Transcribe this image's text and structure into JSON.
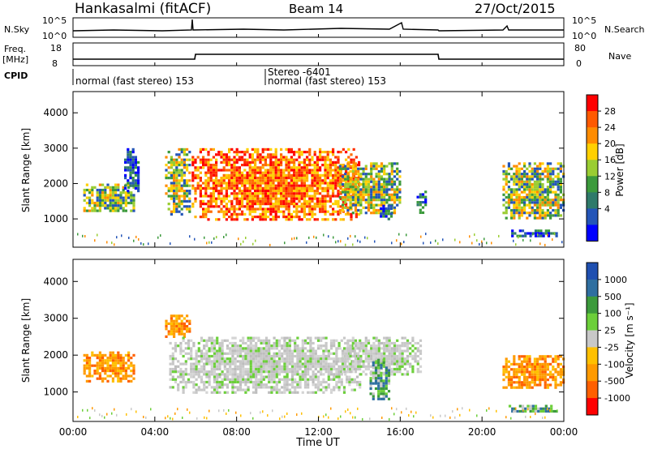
{
  "header": {
    "title": "Hankasalmi (fitACF)",
    "beam": "Beam 14",
    "date": "27/Oct/2015"
  },
  "top_panels": {
    "nsky_label": "N.Sky",
    "nsky_ticks": [
      "10^5",
      "10^0"
    ],
    "nsearch_label": "N.Search",
    "nsearch_ticks": [
      "10^5",
      "10^0"
    ],
    "freq_label": "Freq.",
    "freq_unit": "[MHz]",
    "freq_ticks": [
      "18",
      "8"
    ],
    "nave_label": "Nave",
    "nave_ticks": [
      "80",
      "0"
    ],
    "cpid_label": "CPID",
    "cpid_left": "normal (fast stereo) 153",
    "cpid_right_top": "Stereo -6401",
    "cpid_right_bottom": "normal (fast stereo) 153"
  },
  "chart_data": [
    {
      "type": "heatmap",
      "title": "",
      "ylabel": "Slant Range [km]",
      "xlabel": "",
      "xlim": [
        "00:00",
        "24:00"
      ],
      "ylim": [
        200,
        4600
      ],
      "yticks": [
        "1000",
        "2000",
        "3000",
        "4000"
      ],
      "colorbar": {
        "label": "Power [dB]",
        "ticks": [
          "28",
          "24",
          "20",
          "16",
          "12",
          "8",
          "4"
        ],
        "colors": [
          "#ff0000",
          "#ff5a00",
          "#ff8c00",
          "#ffd000",
          "#9acd32",
          "#3c9a3c",
          "#2f7a6a",
          "#2455b8",
          "#0000ff"
        ]
      },
      "regions": [
        {
          "t": [
            0.5,
            3.0
          ],
          "r": [
            1200,
            2000
          ],
          "level": "mid"
        },
        {
          "t": [
            2.5,
            3.2
          ],
          "r": [
            1800,
            3000
          ],
          "level": "low"
        },
        {
          "t": [
            4.5,
            5.7
          ],
          "r": [
            1100,
            3000
          ],
          "level": "mid"
        },
        {
          "t": [
            5.8,
            14.0
          ],
          "r": [
            1000,
            3000
          ],
          "level": "high"
        },
        {
          "t": [
            13.0,
            16.0
          ],
          "r": [
            1200,
            2600
          ],
          "level": "mid"
        },
        {
          "t": [
            15.0,
            15.6
          ],
          "r": [
            1000,
            1400
          ],
          "level": "low"
        },
        {
          "t": [
            16.8,
            17.2
          ],
          "r": [
            1200,
            1800
          ],
          "level": "low"
        },
        {
          "t": [
            21.0,
            24.0
          ],
          "r": [
            1000,
            2600
          ],
          "level": "mid"
        },
        {
          "t": [
            21.3,
            23.7
          ],
          "r": [
            500,
            700
          ],
          "level": "low"
        }
      ]
    },
    {
      "type": "heatmap",
      "title": "",
      "ylabel": "Slant Range [km]",
      "xlabel": "Time UT",
      "xlim": [
        "00:00",
        "24:00"
      ],
      "xticks": [
        "00:00",
        "04:00",
        "08:00",
        "12:00",
        "16:00",
        "20:00",
        "00:00"
      ],
      "ylim": [
        200,
        4600
      ],
      "yticks": [
        "1000",
        "2000",
        "3000",
        "4000"
      ],
      "colorbar": {
        "label": "Velocity [m s⁻¹]",
        "ticks": [
          "1000",
          "500",
          "100",
          "25",
          "-25",
          "-100",
          "-500",
          "-1000"
        ],
        "colors": [
          "#1f4fb0",
          "#2f6fa0",
          "#3c9a3c",
          "#6ccf3a",
          "#c8c8c8",
          "#ffc000",
          "#ff9a00",
          "#ff6000",
          "#ff0000"
        ]
      },
      "regions": [
        {
          "t": [
            0.5,
            3.0
          ],
          "r": [
            1300,
            2100
          ],
          "level": "neg"
        },
        {
          "t": [
            4.5,
            5.7
          ],
          "r": [
            2500,
            3100
          ],
          "level": "neg"
        },
        {
          "t": [
            4.7,
            14.0
          ],
          "r": [
            1000,
            2500
          ],
          "level": "zero"
        },
        {
          "t": [
            13.0,
            17.0
          ],
          "r": [
            1500,
            2500
          ],
          "level": "zero"
        },
        {
          "t": [
            14.5,
            15.4
          ],
          "r": [
            800,
            1900
          ],
          "level": "pos"
        },
        {
          "t": [
            21.0,
            24.0
          ],
          "r": [
            1100,
            2000
          ],
          "level": "neg"
        },
        {
          "t": [
            21.3,
            23.7
          ],
          "r": [
            450,
            650
          ],
          "level": "pos"
        }
      ]
    }
  ]
}
